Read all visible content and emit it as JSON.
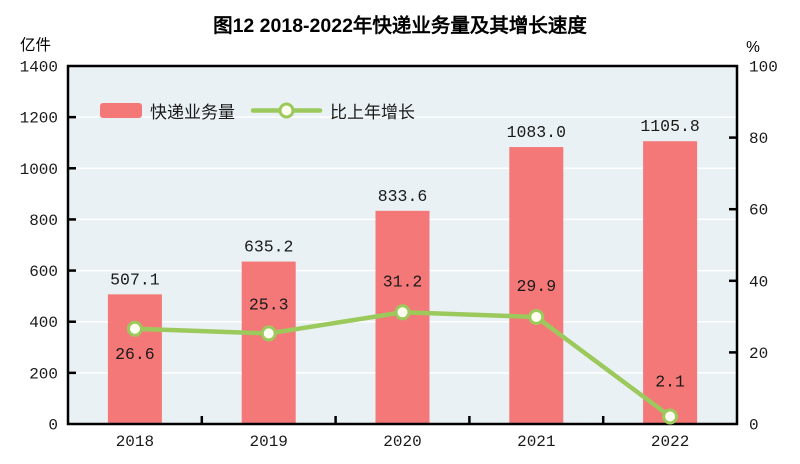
{
  "chart": {
    "title": "图12  2018-2022年快递业务量及其增长速度",
    "left_unit": "亿件",
    "right_unit": "%",
    "legend": [
      {
        "label": "快递业务量",
        "type": "bar"
      },
      {
        "label": "比上年增长",
        "type": "line"
      }
    ],
    "colors": {
      "bar": "#F57878",
      "line": "#9CC95C",
      "marker_fill": "#FFFEF0",
      "plot_bg": "#E9F1F4",
      "grid": "#FFFFFF",
      "axis": "#000000",
      "text": "#1A1A1A"
    }
  },
  "chart_data": {
    "type": "bar+line",
    "title": "图12  2018-2022年快递业务量及其增长速度",
    "categories": [
      "2018",
      "2019",
      "2020",
      "2021",
      "2022"
    ],
    "series": [
      {
        "name": "快递业务量",
        "type": "bar",
        "axis": "left",
        "values": [
          507.1,
          635.2,
          833.6,
          1083.0,
          1105.8
        ],
        "labels": [
          "507.1",
          "635.2",
          "833.6",
          "1083.0",
          "1105.8"
        ]
      },
      {
        "name": "比上年增长",
        "type": "line",
        "axis": "right",
        "values": [
          26.6,
          25.3,
          31.2,
          29.9,
          2.1
        ],
        "labels": [
          "26.6",
          "25.3",
          "31.2",
          "29.9",
          "2.1"
        ]
      }
    ],
    "left_axis": {
      "min": 0,
      "max": 1400,
      "step": 200,
      "unit": "亿件"
    },
    "right_axis": {
      "min": 0,
      "max": 100,
      "step": 20,
      "unit": "%"
    },
    "grid": true,
    "legend_position": "top-left-inside",
    "growth_label_baseline_offsets": [
      30,
      -24,
      -26,
      -26,
      -30
    ]
  }
}
